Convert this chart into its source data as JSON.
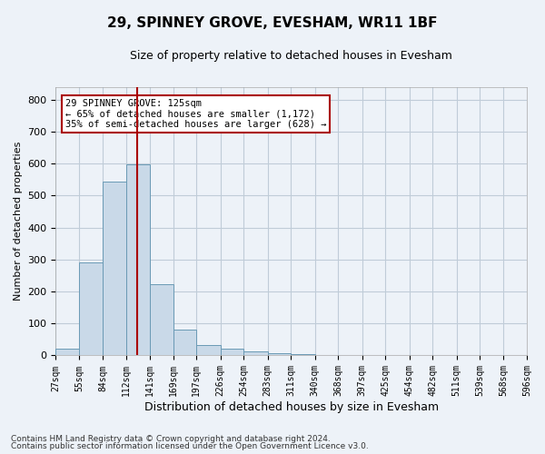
{
  "title": "29, SPINNEY GROVE, EVESHAM, WR11 1BF",
  "subtitle": "Size of property relative to detached houses in Evesham",
  "xlabel": "Distribution of detached houses by size in Evesham",
  "ylabel": "Number of detached properties",
  "footnote1": "Contains HM Land Registry data © Crown copyright and database right 2024.",
  "footnote2": "Contains public sector information licensed under the Open Government Licence v3.0.",
  "bar_color": "#c9d9e8",
  "bar_edge_color": "#6a9ab5",
  "grid_color": "#c0ccd8",
  "background_color": "#edf2f8",
  "vline_color": "#aa0000",
  "vline_x": 125,
  "annotation_line1": "29 SPINNEY GROVE: 125sqm",
  "annotation_line2": "← 65% of detached houses are smaller (1,172)",
  "annotation_line3": "35% of semi-detached houses are larger (628) →",
  "annotation_box_color": "#ffffff",
  "annotation_box_edge": "#aa0000",
  "bin_edges": [
    27,
    55,
    84,
    112,
    141,
    169,
    197,
    226,
    254,
    283,
    311,
    340,
    368,
    397,
    425,
    454,
    482,
    511,
    539,
    568,
    596
  ],
  "bar_heights": [
    22,
    290,
    543,
    598,
    222,
    80,
    33,
    22,
    12,
    8,
    5,
    0,
    0,
    0,
    0,
    0,
    0,
    0,
    0,
    0
  ],
  "ylim": [
    0,
    840
  ],
  "xlim": [
    27,
    596
  ],
  "yticks": [
    0,
    100,
    200,
    300,
    400,
    500,
    600,
    700,
    800
  ],
  "tick_labels": [
    "27sqm",
    "55sqm",
    "84sqm",
    "112sqm",
    "141sqm",
    "169sqm",
    "197sqm",
    "226sqm",
    "254sqm",
    "283sqm",
    "311sqm",
    "340sqm",
    "368sqm",
    "397sqm",
    "425sqm",
    "454sqm",
    "482sqm",
    "511sqm",
    "539sqm",
    "568sqm",
    "596sqm"
  ],
  "title_fontsize": 11,
  "subtitle_fontsize": 9,
  "tick_fontsize": 7,
  "ylabel_fontsize": 8,
  "xlabel_fontsize": 9,
  "footnote_fontsize": 6.5
}
